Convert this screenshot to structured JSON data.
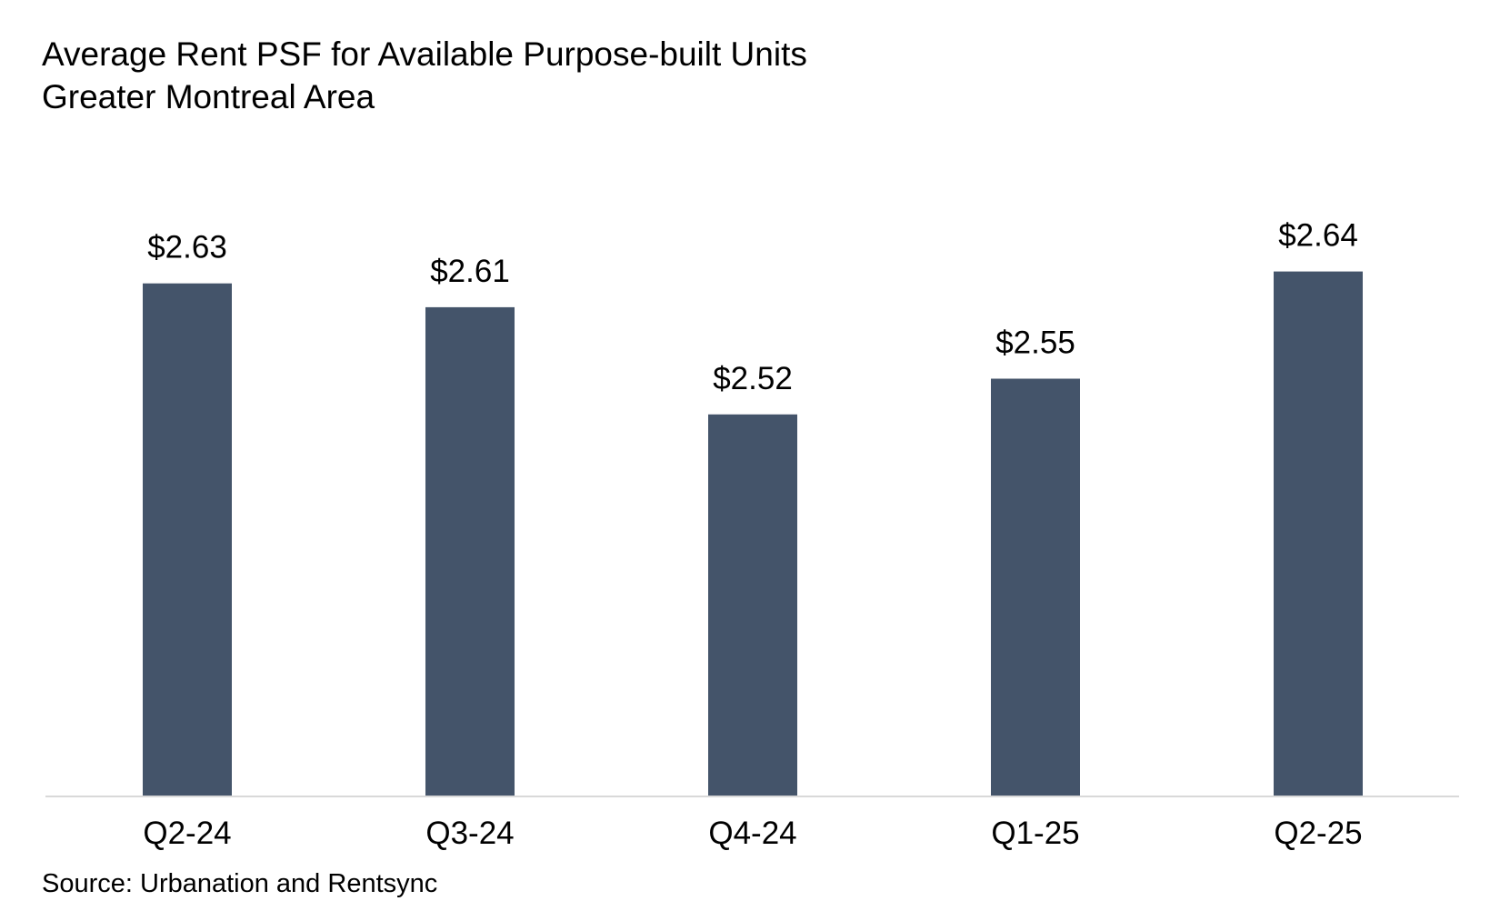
{
  "chart_data": {
    "type": "bar",
    "title": "Average Rent PSF for Available Purpose-built Units",
    "subtitle": "Greater Montreal Area",
    "categories": [
      "Q2-24",
      "Q3-24",
      "Q4-24",
      "Q1-25",
      "Q2-25"
    ],
    "values": [
      2.63,
      2.61,
      2.52,
      2.55,
      2.64
    ],
    "data_labels": [
      "$2.63",
      "$2.61",
      "$2.52",
      "$2.55",
      "$2.64"
    ],
    "xlabel": "",
    "ylabel": "",
    "ylim": [
      2.2,
      2.7
    ],
    "grid": false,
    "legend": "none",
    "bar_color": "#44546a",
    "axis_color": "#d9d9d9",
    "source": "Source: Urbanation and Rentsync"
  }
}
